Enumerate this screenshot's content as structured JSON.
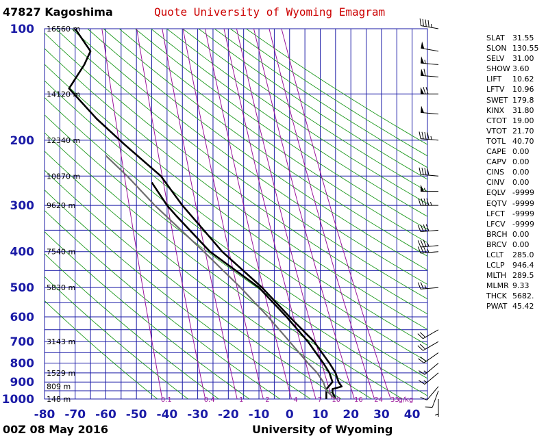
{
  "header": {
    "station_label": "47827  Kagoshima",
    "title": "Quote University of Wyoming Emagram"
  },
  "footer": {
    "datetime": "00Z 08 May 2016",
    "source": "University of Wyoming"
  },
  "indices": [
    {
      "key": "SLAT",
      "value": "31.55"
    },
    {
      "key": "SLON",
      "value": "130.55"
    },
    {
      "key": "SELV",
      "value": "31.00"
    },
    {
      "key": "SHOW",
      "value": "3.60"
    },
    {
      "key": "LIFT",
      "value": "10.62"
    },
    {
      "key": "LFTV",
      "value": "10.96"
    },
    {
      "key": "SWET",
      "value": "179.8"
    },
    {
      "key": "KINX",
      "value": "31.80"
    },
    {
      "key": "CTOT",
      "value": "19.00"
    },
    {
      "key": "VTOT",
      "value": "21.70"
    },
    {
      "key": "TOTL",
      "value": "40.70"
    },
    {
      "key": "CAPE",
      "value": "0.00"
    },
    {
      "key": "CAPV",
      "value": "0.00"
    },
    {
      "key": "CINS",
      "value": "0.00"
    },
    {
      "key": "CINV",
      "value": "0.00"
    },
    {
      "key": "EQLV",
      "value": "-9999"
    },
    {
      "key": "EQTV",
      "value": "-9999"
    },
    {
      "key": "LFCT",
      "value": "-9999"
    },
    {
      "key": "LFCV",
      "value": "-9999"
    },
    {
      "key": "BRCH",
      "value": "0.00"
    },
    {
      "key": "BRCV",
      "value": "0.00"
    },
    {
      "key": "LCLT",
      "value": "285.0"
    },
    {
      "key": "LCLP",
      "value": "946.4"
    },
    {
      "key": "MLTH",
      "value": "289.5"
    },
    {
      "key": "MLMR",
      "value": "9.33"
    },
    {
      "key": "THCK",
      "value": "5682."
    },
    {
      "key": "PWAT",
      "value": "45.42"
    }
  ],
  "chart_data": {
    "type": "line",
    "x_axis": {
      "range": [
        -80,
        45
      ],
      "ticks": [
        -80,
        -70,
        -60,
        -50,
        -40,
        -30,
        -20,
        -10,
        0,
        10,
        20,
        30,
        40
      ]
    },
    "y_axis": {
      "scale": "log",
      "range": [
        1000,
        100
      ],
      "ticks": [
        100,
        200,
        300,
        400,
        500,
        600,
        700,
        800,
        900,
        1000
      ]
    },
    "height_labels": [
      {
        "p": 100,
        "label": "16560 m"
      },
      {
        "p": 150,
        "label": "14120 m"
      },
      {
        "p": 200,
        "label": "12340 m"
      },
      {
        "p": 250,
        "label": "10870 m"
      },
      {
        "p": 300,
        "label": "9620 m"
      },
      {
        "p": 400,
        "label": "7540 m"
      },
      {
        "p": 500,
        "label": "5830 m"
      },
      {
        "p": 700,
        "label": "3143 m"
      },
      {
        "p": 850,
        "label": "1529 m"
      },
      {
        "p": 925,
        "label": "809 m"
      },
      {
        "p": 1000,
        "label": "148 m"
      }
    ],
    "mixing_ratio_labels": [
      "0.1",
      "0.4",
      "1",
      "2",
      "4",
      "7",
      "10",
      "16",
      "24",
      "33",
      "g/kg"
    ],
    "mixing_ratio_values": [
      0.1,
      0.4,
      1,
      2,
      4,
      7,
      10,
      16,
      24,
      33
    ],
    "series": [
      {
        "kind": "temperature",
        "points": [
          [
            100,
            -70
          ],
          [
            115,
            -65
          ],
          [
            125,
            -67
          ],
          [
            145,
            -72
          ],
          [
            175,
            -63
          ],
          [
            205,
            -54
          ],
          [
            250,
            -42
          ],
          [
            300,
            -35
          ],
          [
            350,
            -28
          ],
          [
            400,
            -22
          ],
          [
            500,
            -9
          ],
          [
            600,
            0
          ],
          [
            700,
            8
          ],
          [
            800,
            13
          ],
          [
            850,
            15
          ],
          [
            900,
            16
          ],
          [
            925,
            17
          ],
          [
            940,
            14
          ],
          [
            960,
            14
          ],
          [
            1000,
            15
          ]
        ]
      },
      {
        "kind": "dewpoint",
        "points": [
          [
            260,
            -45
          ],
          [
            300,
            -40
          ],
          [
            320,
            -37
          ],
          [
            400,
            -26
          ],
          [
            500,
            -10
          ],
          [
            600,
            -1
          ],
          [
            700,
            6
          ],
          [
            800,
            11
          ],
          [
            850,
            13
          ],
          [
            900,
            14
          ],
          [
            920,
            13
          ],
          [
            940,
            12
          ],
          [
            960,
            12
          ],
          [
            1000,
            12
          ]
        ]
      },
      {
        "kind": "parcel",
        "points": [
          [
            1000,
            15
          ],
          [
            950,
            12
          ],
          [
            900,
            11
          ],
          [
            850,
            9
          ],
          [
            800,
            6
          ],
          [
            700,
            0
          ],
          [
            600,
            -7
          ],
          [
            500,
            -16
          ],
          [
            400,
            -28
          ],
          [
            300,
            -44
          ],
          [
            250,
            -53
          ],
          [
            220,
            -60
          ]
        ]
      }
    ],
    "wind_barbs": [
      {
        "p": 100,
        "dir": 280,
        "spd": 45
      },
      {
        "p": 115,
        "dir": 280,
        "spd": 50
      },
      {
        "p": 125,
        "dir": 275,
        "spd": 55
      },
      {
        "p": 135,
        "dir": 275,
        "spd": 60
      },
      {
        "p": 150,
        "dir": 270,
        "spd": 70
      },
      {
        "p": 170,
        "dir": 275,
        "spd": 50
      },
      {
        "p": 200,
        "dir": 275,
        "spd": 45
      },
      {
        "p": 250,
        "dir": 275,
        "spd": 40
      },
      {
        "p": 275,
        "dir": 270,
        "spd": 55
      },
      {
        "p": 300,
        "dir": 270,
        "spd": 45
      },
      {
        "p": 350,
        "dir": 265,
        "spd": 40
      },
      {
        "p": 385,
        "dir": 265,
        "spd": 35
      },
      {
        "p": 400,
        "dir": 265,
        "spd": 35
      },
      {
        "p": 500,
        "dir": 265,
        "spd": 25
      },
      {
        "p": 650,
        "dir": 240,
        "spd": 20
      },
      {
        "p": 700,
        "dir": 240,
        "spd": 20
      },
      {
        "p": 750,
        "dir": 235,
        "spd": 20
      },
      {
        "p": 800,
        "dir": 230,
        "spd": 15
      },
      {
        "p": 850,
        "dir": 230,
        "spd": 15
      },
      {
        "p": 925,
        "dir": 220,
        "spd": 10
      },
      {
        "p": 950,
        "dir": 200,
        "spd": 10
      },
      {
        "p": 1000,
        "dir": 180,
        "spd": 5
      }
    ]
  }
}
